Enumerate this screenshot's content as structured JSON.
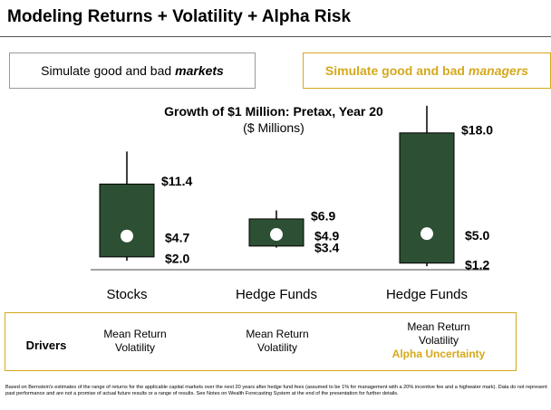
{
  "header": {
    "title": "Modeling Returns + Volatility + Alpha Risk"
  },
  "markets_box": {
    "text": "Simulate good and bad",
    "emphasis": "markets"
  },
  "managers_box": {
    "text": "Simulate good and bad",
    "emphasis": "managers"
  },
  "chart_data": {
    "type": "candlestick",
    "title": "Growth of $1 Million: Pretax, Year 20",
    "subtitle": "($ Millions)",
    "categories": [
      "Stocks",
      "Hedge Funds",
      "Hedge Funds"
    ],
    "whisker_high": {
      "values": [
        15.6,
        8.0,
        21.5
      ]
    },
    "upper": {
      "values": [
        11.4,
        6.9,
        18.0
      ],
      "value_labels": [
        "$11.4",
        "$6.9",
        "$18.0"
      ]
    },
    "median": {
      "values": [
        4.7,
        4.9,
        5.0
      ],
      "value_labels": [
        "$4.7",
        "$4.9",
        "$5.0"
      ]
    },
    "lower": {
      "values": [
        2.0,
        3.4,
        1.2
      ],
      "value_labels": [
        "$2.0",
        "$3.4",
        "$1.2"
      ]
    },
    "whisker_low": {
      "values": [
        1.5,
        3.2,
        0.8
      ]
    },
    "color": "#2d4f33",
    "ylim": [
      0,
      23
    ]
  },
  "drivers": {
    "label": "Drivers",
    "columns": [
      [
        "Mean Return",
        "Volatility"
      ],
      [
        "Mean Return",
        "Volatility"
      ],
      [
        "Mean Return",
        "Volatility"
      ]
    ],
    "extra": "Alpha Uncertainty"
  },
  "footnote": "Based on Bernstein's estimates of the range of returns for the applicable capital markets over the next 20 years after hedge fund fees (assumed to be 1% for management with a 20% incentive fee and a highwater mark). Data do not represent past performance and are not a promise of actual future results or a range of results. See Notes on Wealth Forecasting System at the end of the presentation for further details."
}
